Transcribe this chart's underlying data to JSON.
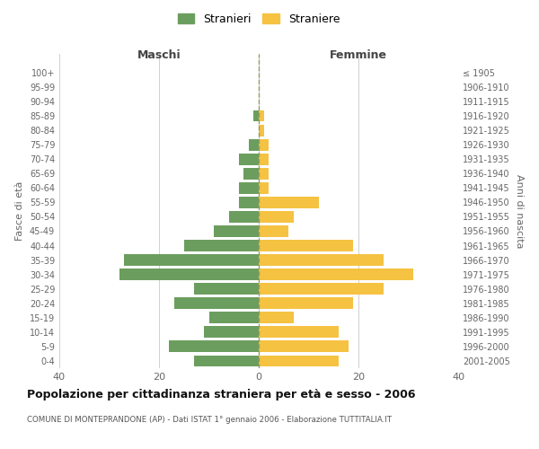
{
  "age_groups": [
    "0-4",
    "5-9",
    "10-14",
    "15-19",
    "20-24",
    "25-29",
    "30-34",
    "35-39",
    "40-44",
    "45-49",
    "50-54",
    "55-59",
    "60-64",
    "65-69",
    "70-74",
    "75-79",
    "80-84",
    "85-89",
    "90-94",
    "95-99",
    "100+"
  ],
  "birth_years": [
    "2001-2005",
    "1996-2000",
    "1991-1995",
    "1986-1990",
    "1981-1985",
    "1976-1980",
    "1971-1975",
    "1966-1970",
    "1961-1965",
    "1956-1960",
    "1951-1955",
    "1946-1950",
    "1941-1945",
    "1936-1940",
    "1931-1935",
    "1926-1930",
    "1921-1925",
    "1916-1920",
    "1911-1915",
    "1906-1910",
    "≤ 1905"
  ],
  "maschi": [
    13,
    18,
    11,
    10,
    17,
    13,
    28,
    27,
    15,
    9,
    6,
    4,
    4,
    3,
    4,
    2,
    0,
    1,
    0,
    0,
    0
  ],
  "femmine": [
    16,
    18,
    16,
    7,
    19,
    25,
    31,
    25,
    19,
    6,
    7,
    12,
    2,
    2,
    2,
    2,
    1,
    1,
    0,
    0,
    0
  ],
  "color_maschi": "#6b9e5e",
  "color_femmine": "#f5c242",
  "title": "Popolazione per cittadinanza straniera per età e sesso - 2006",
  "subtitle": "COMUNE DI MONTEPRANDONE (AP) - Dati ISTAT 1° gennaio 2006 - Elaborazione TUTTITALIA.IT",
  "xlabel_left": "Maschi",
  "xlabel_right": "Femmine",
  "ylabel_left": "Fasce di età",
  "ylabel_right": "Anni di nascita",
  "xlim": 40,
  "legend_stranieri": "Stranieri",
  "legend_straniere": "Straniere",
  "background_color": "#ffffff",
  "grid_color": "#d0d0d0"
}
